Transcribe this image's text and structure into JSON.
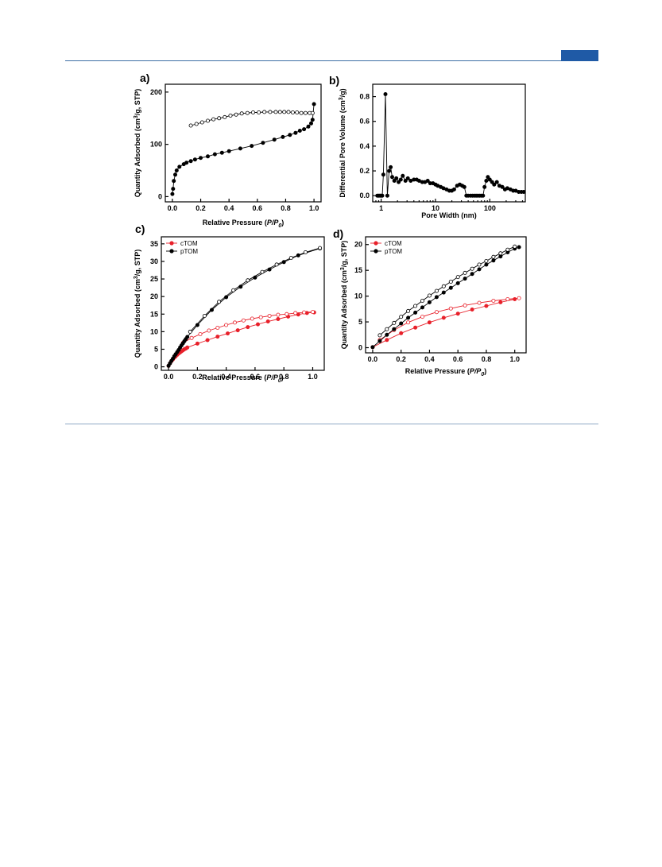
{
  "page": {
    "header_tab_color": "#1f5aa6",
    "rule_color": "#3d6fa5"
  },
  "chart_data": [
    {
      "panel": "a)",
      "type": "scatter",
      "xlabel": "Relative Pressure (P/P0)",
      "ylabel": "Quantity Adsorbed (cm3/g, STP)",
      "xlim": [
        -0.05,
        1.05
      ],
      "ylim": [
        -10,
        215
      ],
      "xticks": [
        "0.0",
        "0.2",
        "0.4",
        "0.6",
        "0.8",
        "1.0"
      ],
      "yticks": [
        "0",
        "100",
        "200"
      ],
      "grid": false,
      "series": [
        {
          "marker": "filled",
          "color": "#000000",
          "x": [
            0.0,
            0.005,
            0.01,
            0.02,
            0.03,
            0.05,
            0.08,
            0.1,
            0.13,
            0.16,
            0.2,
            0.25,
            0.3,
            0.35,
            0.4,
            0.48,
            0.56,
            0.64,
            0.72,
            0.78,
            0.83,
            0.87,
            0.9,
            0.93,
            0.96,
            0.98,
            0.99,
            1.0
          ],
          "y": [
            5,
            15,
            30,
            42,
            50,
            57,
            62,
            65,
            68,
            71,
            74,
            77,
            81,
            84,
            87,
            92,
            97,
            103,
            109,
            114,
            118,
            122,
            126,
            129,
            134,
            140,
            147,
            177
          ]
        },
        {
          "marker": "open",
          "color": "#000000",
          "x": [
            0.13,
            0.17,
            0.21,
            0.25,
            0.29,
            0.33,
            0.37,
            0.41,
            0.45,
            0.49,
            0.53,
            0.57,
            0.61,
            0.65,
            0.69,
            0.73,
            0.76,
            0.79,
            0.82,
            0.85,
            0.88,
            0.91,
            0.94,
            0.97,
            0.99
          ],
          "y": [
            136,
            139,
            142,
            145,
            148,
            150,
            152,
            155,
            157,
            159,
            160,
            161,
            161,
            162,
            162,
            162,
            162,
            162,
            162,
            161,
            161,
            160,
            160,
            160,
            160
          ]
        }
      ]
    },
    {
      "panel": "b)",
      "type": "line",
      "xscale": "log",
      "xlabel": "Pore Width (nm)",
      "ylabel": "Differential Pore Volume (cm3/g)",
      "xlim": [
        0.7,
        450
      ],
      "ylim": [
        -0.05,
        0.9
      ],
      "xticks": [
        "1",
        "10",
        "100"
      ],
      "yticks": [
        "0.0",
        "0.2",
        "0.4",
        "0.6",
        "0.8"
      ],
      "grid": false,
      "series": [
        {
          "marker": "filled",
          "color": "#000000",
          "x": [
            0.85,
            0.9,
            0.95,
            1.0,
            1.05,
            1.1,
            1.2,
            1.3,
            1.4,
            1.5,
            1.6,
            1.75,
            1.9,
            2.1,
            2.3,
            2.5,
            2.8,
            3.1,
            3.5,
            4.0,
            4.5,
            5.0,
            5.7,
            6.4,
            7.2,
            8.0,
            9.0,
            10.0,
            11.0,
            12.5,
            14.0,
            16.0,
            18.0,
            20.0,
            22.0,
            25.0,
            28.0,
            31.0,
            34.0,
            37.0,
            40.0,
            44.0,
            48.0,
            52.0,
            56.0,
            60.0,
            65.0,
            70.0,
            75.0,
            80.0,
            86.0,
            92.0,
            100.0,
            110.0,
            120.0,
            135.0,
            150.0,
            170.0,
            190.0,
            210.0,
            240.0,
            270.0,
            300.0,
            340.0,
            380.0,
            420.0
          ],
          "y": [
            0.0,
            0.0,
            0.0,
            0.0,
            0.0,
            0.17,
            0.82,
            0.0,
            0.2,
            0.23,
            0.15,
            0.12,
            0.14,
            0.11,
            0.13,
            0.16,
            0.12,
            0.14,
            0.12,
            0.13,
            0.13,
            0.12,
            0.11,
            0.11,
            0.12,
            0.1,
            0.1,
            0.09,
            0.08,
            0.07,
            0.06,
            0.05,
            0.04,
            0.04,
            0.05,
            0.08,
            0.09,
            0.08,
            0.07,
            0.0,
            0.0,
            0.0,
            0.0,
            0.0,
            0.0,
            0.0,
            0.0,
            0.0,
            0.0,
            0.07,
            0.12,
            0.15,
            0.13,
            0.11,
            0.09,
            0.11,
            0.08,
            0.07,
            0.05,
            0.06,
            0.05,
            0.04,
            0.04,
            0.03,
            0.03,
            0.03
          ]
        }
      ]
    },
    {
      "panel": "c)",
      "type": "scatter",
      "xlabel": "Relative Pressure (P/P0)",
      "ylabel": "Quantity Adsorbed (cm3/g, STP)",
      "xlim": [
        -0.05,
        1.08
      ],
      "ylim": [
        -1,
        37
      ],
      "xticks": [
        "0.0",
        "0.2",
        "0.4",
        "0.6",
        "0.8",
        "1.0"
      ],
      "yticks": [
        "0",
        "5",
        "10",
        "15",
        "20",
        "25",
        "30",
        "35"
      ],
      "legend": "top-left",
      "grid": false,
      "series": [
        {
          "name": "cTOM",
          "marker": "filled",
          "color": "#e8202a",
          "x": [
            0.0,
            0.01,
            0.02,
            0.03,
            0.04,
            0.05,
            0.06,
            0.07,
            0.08,
            0.09,
            0.1,
            0.11,
            0.12,
            0.13,
            0.2,
            0.27,
            0.34,
            0.41,
            0.48,
            0.55,
            0.62,
            0.69,
            0.76,
            0.83,
            0.9,
            0.96,
            1.01
          ],
          "y": [
            0.3,
            1.0,
            1.6,
            2.1,
            2.6,
            3.0,
            3.4,
            3.8,
            4.1,
            4.4,
            4.7,
            5.0,
            5.2,
            5.5,
            6.6,
            7.6,
            8.6,
            9.5,
            10.4,
            11.3,
            12.1,
            12.9,
            13.6,
            14.3,
            14.9,
            15.3,
            15.5
          ]
        },
        {
          "marker": "open",
          "color": "#e8202a",
          "x": [
            0.1,
            0.16,
            0.22,
            0.28,
            0.34,
            0.4,
            0.46,
            0.52,
            0.58,
            0.64,
            0.7,
            0.76,
            0.82,
            0.88,
            0.94,
            1.0
          ],
          "y": [
            6.8,
            8.2,
            9.3,
            10.3,
            11.1,
            11.9,
            12.6,
            13.2,
            13.7,
            14.1,
            14.5,
            14.8,
            15.0,
            15.3,
            15.5,
            15.6
          ]
        },
        {
          "name": "pTOM",
          "marker": "filled",
          "color": "#000000",
          "x": [
            0.0,
            0.01,
            0.02,
            0.03,
            0.04,
            0.05,
            0.06,
            0.07,
            0.08,
            0.09,
            0.1,
            0.11,
            0.12,
            0.13,
            0.2,
            0.3,
            0.4,
            0.5,
            0.6,
            0.7,
            0.8,
            0.9,
            1.05
          ],
          "y": [
            0.3,
            1.0,
            1.7,
            2.3,
            3.0,
            3.6,
            4.2,
            4.8,
            5.5,
            6.1,
            6.7,
            7.3,
            7.9,
            8.5,
            11.9,
            16.2,
            19.8,
            22.8,
            25.4,
            27.7,
            29.8,
            31.7,
            33.7
          ]
        },
        {
          "marker": "open",
          "color": "#000000",
          "x": [
            0.15,
            0.25,
            0.35,
            0.45,
            0.55,
            0.65,
            0.75,
            0.85,
            0.95,
            1.05
          ],
          "y": [
            10.0,
            14.5,
            18.5,
            21.8,
            24.6,
            27.0,
            29.1,
            31.0,
            32.6,
            33.8
          ]
        }
      ]
    },
    {
      "panel": "d)",
      "type": "scatter",
      "xlabel": "Relative Pressure (P/P0)",
      "ylabel": "Quantity Adsorbed (cm3/g, STP)",
      "xlim": [
        -0.05,
        1.08
      ],
      "ylim": [
        -1,
        21.5
      ],
      "xticks": [
        "0.0",
        "0.2",
        "0.4",
        "0.6",
        "0.8",
        "1.0"
      ],
      "yticks": [
        "0",
        "5",
        "10",
        "15",
        "20"
      ],
      "legend": "top-left",
      "grid": false,
      "series": [
        {
          "name": "cTOM",
          "marker": "filled",
          "color": "#e8202a",
          "x": [
            0.0,
            0.1,
            0.2,
            0.3,
            0.4,
            0.5,
            0.6,
            0.7,
            0.8,
            0.9,
            1.0
          ],
          "y": [
            0.1,
            1.5,
            2.8,
            3.9,
            4.9,
            5.8,
            6.6,
            7.4,
            8.1,
            8.8,
            9.4
          ]
        },
        {
          "marker": "open",
          "color": "#e8202a",
          "x": [
            0.05,
            0.15,
            0.25,
            0.35,
            0.45,
            0.55,
            0.65,
            0.75,
            0.85,
            0.95,
            1.03
          ],
          "y": [
            1.5,
            3.4,
            4.9,
            6.0,
            6.9,
            7.6,
            8.2,
            8.7,
            9.1,
            9.4,
            9.6
          ]
        },
        {
          "name": "pTOM",
          "marker": "filled",
          "color": "#000000",
          "x": [
            0.0,
            0.05,
            0.1,
            0.15,
            0.2,
            0.25,
            0.3,
            0.35,
            0.4,
            0.45,
            0.5,
            0.55,
            0.6,
            0.65,
            0.7,
            0.75,
            0.8,
            0.85,
            0.9,
            0.95,
            1.0,
            1.03
          ],
          "y": [
            0.1,
            1.3,
            2.5,
            3.6,
            4.7,
            5.8,
            6.8,
            7.8,
            8.8,
            9.8,
            10.7,
            11.6,
            12.5,
            13.4,
            14.3,
            15.2,
            16.1,
            16.9,
            17.7,
            18.5,
            19.2,
            19.5
          ]
        },
        {
          "marker": "open",
          "color": "#000000",
          "x": [
            0.05,
            0.1,
            0.15,
            0.2,
            0.25,
            0.3,
            0.35,
            0.4,
            0.45,
            0.5,
            0.55,
            0.6,
            0.65,
            0.7,
            0.75,
            0.8,
            0.85,
            0.9,
            0.95,
            1.0
          ],
          "y": [
            2.4,
            3.6,
            4.8,
            6.0,
            7.1,
            8.1,
            9.1,
            10.1,
            11.0,
            11.9,
            12.8,
            13.7,
            14.5,
            15.3,
            16.1,
            16.8,
            17.6,
            18.3,
            19.0,
            19.6
          ]
        }
      ]
    }
  ]
}
